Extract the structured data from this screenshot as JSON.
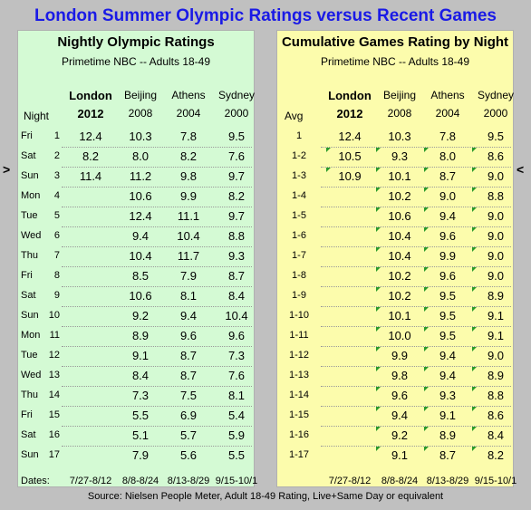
{
  "title": "London Summer Olympic Ratings versus Recent Games",
  "source": "Source: Nielsen People Meter, Adult 18-49 Rating, Live+Same Day or equivalent",
  "left_arrow": ">",
  "right_arrow": "<",
  "colors": {
    "title": "#1a1ae6",
    "left_panel": "#d4fad4",
    "right_panel": "#fcfcac",
    "marker": "#2a9a2a"
  },
  "chart_data": [
    {
      "type": "table",
      "title": "Nightly Olympic Ratings",
      "subtitle": "Primetime NBC -- Adults 18-49",
      "row_header": "Night",
      "columns": [
        {
          "name": "London",
          "year": "2012",
          "dates": "7/27-8/12"
        },
        {
          "name": "Beijing",
          "year": "2008",
          "dates": "8/8-8/24"
        },
        {
          "name": "Athens",
          "year": "2004",
          "dates": "8/13-8/29"
        },
        {
          "name": "Sydney",
          "year": "2000",
          "dates": "9/15-10/1"
        }
      ],
      "dates_label": "Dates:",
      "rows": [
        {
          "day": "Fri",
          "night": "1",
          "values": [
            "12.4",
            "10.3",
            "7.8",
            "9.5"
          ]
        },
        {
          "day": "Sat",
          "night": "2",
          "values": [
            "8.2",
            "8.0",
            "8.2",
            "7.6"
          ]
        },
        {
          "day": "Sun",
          "night": "3",
          "values": [
            "11.4",
            "11.2",
            "9.8",
            "9.7"
          ]
        },
        {
          "day": "Mon",
          "night": "4",
          "values": [
            "",
            "10.6",
            "9.9",
            "8.2"
          ]
        },
        {
          "day": "Tue",
          "night": "5",
          "values": [
            "",
            "12.4",
            "11.1",
            "9.7"
          ]
        },
        {
          "day": "Wed",
          "night": "6",
          "values": [
            "",
            "9.4",
            "10.4",
            "8.8"
          ]
        },
        {
          "day": "Thu",
          "night": "7",
          "values": [
            "",
            "10.4",
            "11.7",
            "9.3"
          ]
        },
        {
          "day": "Fri",
          "night": "8",
          "values": [
            "",
            "8.5",
            "7.9",
            "8.7"
          ]
        },
        {
          "day": "Sat",
          "night": "9",
          "values": [
            "",
            "10.6",
            "8.1",
            "8.4"
          ]
        },
        {
          "day": "Sun",
          "night": "10",
          "values": [
            "",
            "9.2",
            "9.4",
            "10.4"
          ]
        },
        {
          "day": "Mon",
          "night": "11",
          "values": [
            "",
            "8.9",
            "9.6",
            "9.6"
          ]
        },
        {
          "day": "Tue",
          "night": "12",
          "values": [
            "",
            "9.1",
            "8.7",
            "7.3"
          ]
        },
        {
          "day": "Wed",
          "night": "13",
          "values": [
            "",
            "8.4",
            "8.7",
            "7.6"
          ]
        },
        {
          "day": "Thu",
          "night": "14",
          "values": [
            "",
            "7.3",
            "7.5",
            "8.1"
          ]
        },
        {
          "day": "Fri",
          "night": "15",
          "values": [
            "",
            "5.5",
            "6.9",
            "5.4"
          ]
        },
        {
          "day": "Sat",
          "night": "16",
          "values": [
            "",
            "5.1",
            "5.7",
            "5.9"
          ]
        },
        {
          "day": "Sun",
          "night": "17",
          "values": [
            "",
            "7.9",
            "5.6",
            "5.5"
          ]
        }
      ]
    },
    {
      "type": "table",
      "title": "Cumulative Games Rating by Night",
      "subtitle": "Primetime NBC -- Adults 18-49",
      "row_header": "Avg",
      "columns": [
        {
          "name": "London",
          "year": "2012",
          "dates": "7/27-8/12"
        },
        {
          "name": "Beijing",
          "year": "2008",
          "dates": "8/8-8/24"
        },
        {
          "name": "Athens",
          "year": "2004",
          "dates": "8/13-8/29"
        },
        {
          "name": "Sydney",
          "year": "2000",
          "dates": "9/15-10/1"
        }
      ],
      "rows": [
        {
          "label": "1",
          "values": [
            "12.4",
            "10.3",
            "7.8",
            "9.5"
          ]
        },
        {
          "label": "1-2",
          "values": [
            "10.5",
            "9.3",
            "8.0",
            "8.6"
          ]
        },
        {
          "label": "1-3",
          "values": [
            "10.9",
            "10.1",
            "8.7",
            "9.0"
          ]
        },
        {
          "label": "1-4",
          "values": [
            "",
            "10.2",
            "9.0",
            "8.8"
          ]
        },
        {
          "label": "1-5",
          "values": [
            "",
            "10.6",
            "9.4",
            "9.0"
          ]
        },
        {
          "label": "1-6",
          "values": [
            "",
            "10.4",
            "9.6",
            "9.0"
          ]
        },
        {
          "label": "1-7",
          "values": [
            "",
            "10.4",
            "9.9",
            "9.0"
          ]
        },
        {
          "label": "1-8",
          "values": [
            "",
            "10.2",
            "9.6",
            "9.0"
          ]
        },
        {
          "label": "1-9",
          "values": [
            "",
            "10.2",
            "9.5",
            "8.9"
          ]
        },
        {
          "label": "1-10",
          "values": [
            "",
            "10.1",
            "9.5",
            "9.1"
          ]
        },
        {
          "label": "1-11",
          "values": [
            "",
            "10.0",
            "9.5",
            "9.1"
          ]
        },
        {
          "label": "1-12",
          "values": [
            "",
            "9.9",
            "9.4",
            "9.0"
          ]
        },
        {
          "label": "1-13",
          "values": [
            "",
            "9.8",
            "9.4",
            "8.9"
          ]
        },
        {
          "label": "1-14",
          "values": [
            "",
            "9.6",
            "9.3",
            "8.8"
          ]
        },
        {
          "label": "1-15",
          "values": [
            "",
            "9.4",
            "9.1",
            "8.6"
          ]
        },
        {
          "label": "1-16",
          "values": [
            "",
            "9.2",
            "8.9",
            "8.4"
          ]
        },
        {
          "label": "1-17",
          "values": [
            "",
            "9.1",
            "8.7",
            "8.2"
          ]
        }
      ]
    }
  ]
}
